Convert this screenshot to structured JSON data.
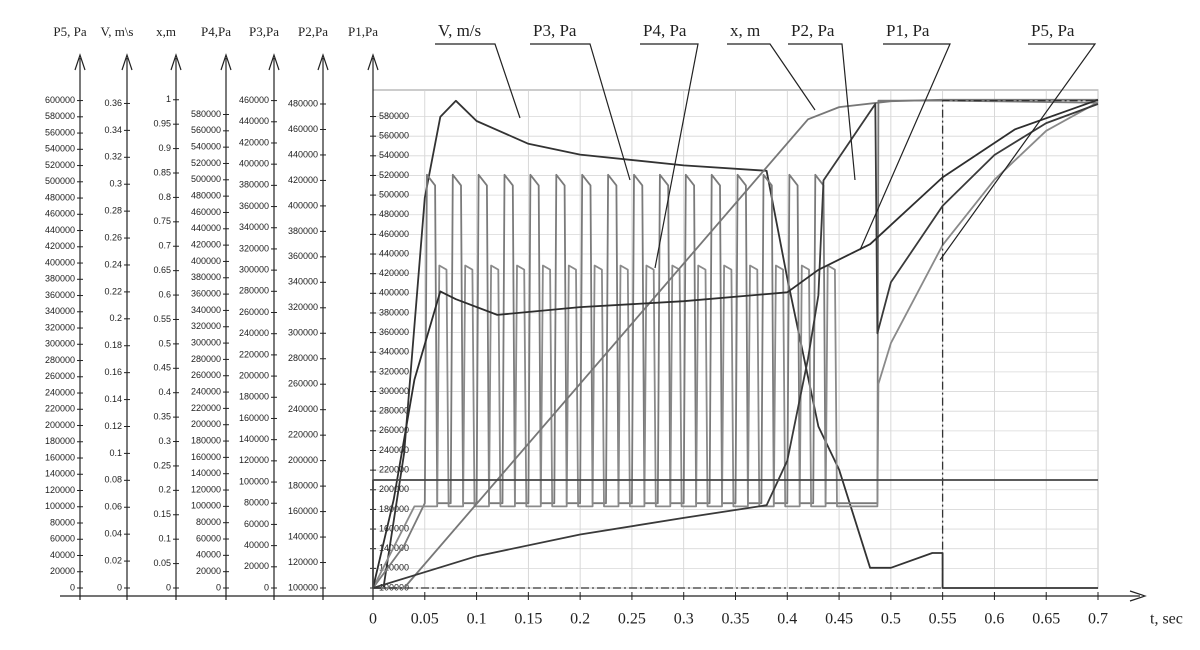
{
  "chart_data": {
    "type": "line",
    "x_label": "t, sec",
    "xlim": [
      0,
      0.7
    ],
    "xticks": [
      0,
      0.05,
      0.1,
      0.15,
      0.2,
      0.25,
      0.3,
      0.35,
      0.4,
      0.45,
      0.5,
      0.55,
      0.6,
      0.65,
      0.7
    ],
    "grid": true,
    "axes": [
      {
        "title": "P5, Pa",
        "ylim": [
          0,
          613000
        ],
        "yticks": [
          0,
          20000,
          40000,
          60000,
          80000,
          100000,
          120000,
          140000,
          160000,
          180000,
          200000,
          220000,
          240000,
          260000,
          280000,
          300000,
          320000,
          340000,
          360000,
          380000,
          400000,
          420000,
          440000,
          460000,
          480000,
          500000,
          520000,
          540000,
          560000,
          580000,
          600000
        ]
      },
      {
        "title": "V, m\\s",
        "ylim": [
          0,
          0.37
        ],
        "yticks": [
          0,
          0.02,
          0.04,
          0.06,
          0.08,
          0.1,
          0.12,
          0.14,
          0.16,
          0.18,
          0.2,
          0.22,
          0.24,
          0.26,
          0.28,
          0.3,
          0.32,
          0.34,
          0.36
        ]
      },
      {
        "title": "x,m",
        "ylim": [
          0,
          1.02
        ],
        "yticks": [
          0,
          0.05,
          0.1,
          0.15,
          0.2,
          0.25,
          0.3,
          0.35,
          0.4,
          0.45,
          0.5,
          0.55,
          0.6,
          0.65,
          0.7,
          0.75,
          0.8,
          0.85,
          0.9,
          0.95,
          1
        ]
      },
      {
        "title": "P4,Pa",
        "ylim": [
          0,
          610000
        ],
        "yticks": [
          0,
          20000,
          40000,
          60000,
          80000,
          100000,
          120000,
          140000,
          160000,
          180000,
          200000,
          220000,
          240000,
          260000,
          280000,
          300000,
          320000,
          340000,
          360000,
          380000,
          400000,
          420000,
          440000,
          460000,
          480000,
          500000,
          520000,
          540000,
          560000,
          580000
        ]
      },
      {
        "title": "P3,Pa",
        "ylim": [
          0,
          470000
        ],
        "yticks": [
          0,
          20000,
          40000,
          60000,
          80000,
          100000,
          120000,
          140000,
          160000,
          180000,
          200000,
          220000,
          240000,
          260000,
          280000,
          300000,
          320000,
          340000,
          360000,
          380000,
          400000,
          420000,
          440000,
          460000
        ]
      },
      {
        "title": "P2,Pa",
        "ylim": [
          100000,
          491000
        ],
        "yticks": [
          100000,
          120000,
          140000,
          160000,
          180000,
          200000,
          220000,
          240000,
          260000,
          280000,
          300000,
          320000,
          340000,
          360000,
          380000,
          400000,
          420000,
          440000,
          460000,
          480000
        ]
      },
      {
        "title": "P1,Pa",
        "ylim": [
          100000,
          607000
        ],
        "yticks": [
          100000,
          120000,
          140000,
          160000,
          180000,
          200000,
          220000,
          240000,
          260000,
          280000,
          300000,
          320000,
          340000,
          360000,
          380000,
          400000,
          420000,
          440000,
          460000,
          480000,
          500000,
          520000,
          540000,
          560000,
          580000
        ]
      }
    ],
    "series": [
      {
        "name": "V, m/s",
        "color": "#333333",
        "axis": 1,
        "x": [
          0,
          0.01,
          0.03,
          0.05,
          0.065,
          0.08,
          0.1,
          0.15,
          0.2,
          0.3,
          0.38,
          0.4,
          0.43,
          0.45,
          0.48,
          0.5,
          0.54,
          0.55,
          0.55,
          0.7
        ],
        "values": [
          0,
          0,
          0.1,
          0.29,
          0.35,
          0.362,
          0.347,
          0.33,
          0.322,
          0.314,
          0.31,
          0.23,
          0.12,
          0.088,
          0.015,
          0.015,
          0.026,
          0.026,
          0,
          0
        ]
      },
      {
        "name": "P3, Pa",
        "color": "#7a7a7a",
        "axis": 4,
        "x": [
          0,
          0.03,
          0.05,
          0.052,
          0.06,
          0.062,
          0.075,
          0.077,
          0.085,
          0.087,
          0.1,
          0.102,
          0.11,
          0.112,
          0.125,
          0.127,
          0.135,
          0.137,
          0.15,
          0.152,
          0.16,
          0.162,
          0.175,
          0.177,
          0.185,
          0.187,
          0.2,
          0.202,
          0.21,
          0.212,
          0.225,
          0.227,
          0.235,
          0.237,
          0.25,
          0.252,
          0.26,
          0.262,
          0.275,
          0.277,
          0.285,
          0.287,
          0.3,
          0.302,
          0.31,
          0.312,
          0.325,
          0.327,
          0.335,
          0.337,
          0.35,
          0.352,
          0.36,
          0.362,
          0.375,
          0.377,
          0.385,
          0.387,
          0.4,
          0.402,
          0.41,
          0.412,
          0.425,
          0.427,
          0.435,
          0.437,
          0.487,
          0.488,
          0.55,
          0.7
        ],
        "values": [
          0,
          40000,
          80000,
          390000,
          380000,
          80000,
          80000,
          390000,
          380000,
          80000,
          80000,
          390000,
          380000,
          80000,
          80000,
          390000,
          380000,
          80000,
          80000,
          390000,
          380000,
          80000,
          80000,
          390000,
          380000,
          80000,
          80000,
          390000,
          380000,
          80000,
          80000,
          390000,
          380000,
          80000,
          80000,
          390000,
          380000,
          80000,
          80000,
          390000,
          380000,
          80000,
          80000,
          390000,
          380000,
          80000,
          80000,
          390000,
          380000,
          80000,
          80000,
          390000,
          380000,
          80000,
          80000,
          390000,
          380000,
          80000,
          80000,
          390000,
          380000,
          80000,
          80000,
          390000,
          380000,
          80000,
          80000,
          460000,
          460000,
          458000
        ]
      },
      {
        "name": "P4, Pa",
        "color": "#8a8a8a",
        "axis": 3,
        "x": [
          0,
          0.04,
          0.062,
          0.064,
          0.071,
          0.073,
          0.087,
          0.089,
          0.096,
          0.098,
          0.112,
          0.114,
          0.121,
          0.123,
          0.137,
          0.139,
          0.146,
          0.148,
          0.162,
          0.164,
          0.171,
          0.173,
          0.187,
          0.189,
          0.196,
          0.198,
          0.212,
          0.214,
          0.221,
          0.223,
          0.237,
          0.239,
          0.246,
          0.248,
          0.262,
          0.264,
          0.271,
          0.273,
          0.287,
          0.289,
          0.296,
          0.298,
          0.312,
          0.314,
          0.321,
          0.323,
          0.337,
          0.339,
          0.346,
          0.348,
          0.362,
          0.364,
          0.371,
          0.373,
          0.387,
          0.389,
          0.396,
          0.398,
          0.412,
          0.414,
          0.421,
          0.423,
          0.437,
          0.439,
          0.446,
          0.448,
          0.487,
          0.488,
          0.5,
          0.55,
          0.6,
          0.65,
          0.7
        ],
        "values": [
          0,
          100000,
          100000,
          395000,
          390000,
          100000,
          100000,
          395000,
          390000,
          100000,
          100000,
          395000,
          390000,
          100000,
          100000,
          395000,
          390000,
          100000,
          100000,
          395000,
          390000,
          100000,
          100000,
          395000,
          390000,
          100000,
          100000,
          395000,
          390000,
          100000,
          100000,
          395000,
          390000,
          100000,
          100000,
          395000,
          390000,
          100000,
          100000,
          395000,
          390000,
          100000,
          100000,
          395000,
          390000,
          100000,
          100000,
          395000,
          390000,
          100000,
          100000,
          395000,
          390000,
          100000,
          100000,
          395000,
          390000,
          100000,
          100000,
          395000,
          390000,
          100000,
          100000,
          395000,
          390000,
          100000,
          100000,
          250000,
          300000,
          420000,
          500000,
          560000,
          595000
        ]
      },
      {
        "name": "x, m",
        "color": "#777777",
        "axis": 2,
        "x": [
          0,
          0.03,
          0.42,
          0.45,
          0.5,
          0.55,
          0.7
        ],
        "values": [
          0,
          0,
          0.96,
          0.985,
          0.997,
          1,
          1
        ]
      },
      {
        "name": "P2, Pa",
        "color": "#3a3a3a",
        "axis": 5,
        "x": [
          0,
          0.1,
          0.2,
          0.3,
          0.38,
          0.4,
          0.42,
          0.43,
          0.435,
          0.46,
          0.485,
          0.487,
          0.5,
          0.55,
          0.6,
          0.65,
          0.7
        ],
        "values": [
          100000,
          125000,
          142000,
          155000,
          165000,
          200000,
          280000,
          330000,
          420000,
          450000,
          480000,
          300000,
          340000,
          400000,
          440000,
          465000,
          480000
        ]
      },
      {
        "name": "P1, Pa",
        "color": "#2e2e2e",
        "axis": 6,
        "x": [
          0,
          0.02,
          0.04,
          0.065,
          0.08,
          0.12,
          0.2,
          0.3,
          0.4,
          0.43,
          0.48,
          0.55,
          0.62,
          0.7
        ],
        "values": [
          100000,
          190000,
          312000,
          402000,
          394000,
          378000,
          386000,
          392000,
          401000,
          424000,
          450000,
          518000,
          567000,
          597000
        ]
      },
      {
        "name": "P5, Pa",
        "color": "#333333",
        "axis": 0,
        "line_style": "dashdot",
        "x": [
          0,
          0.55,
          0.55,
          0.7
        ],
        "values": [
          0,
          0,
          600000,
          600000
        ]
      },
      {
        "color": "#444444",
        "axis": 6,
        "x": [
          0,
          0,
          0.7
        ],
        "values": [
          100000,
          210000,
          210000
        ]
      }
    ]
  }
}
